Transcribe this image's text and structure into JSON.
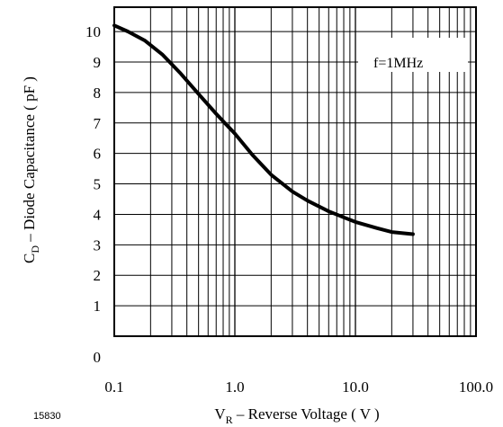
{
  "chart_data": {
    "type": "line",
    "figure_id": "15830",
    "xlabel_main": "V",
    "xlabel_sub": "R",
    "xlabel_rest": " – Reverse Voltage ( V )",
    "ylabel_main": "C",
    "ylabel_sub": "D",
    "ylabel_rest": " – Diode Capacitance ( pF )",
    "annotation": "f=1MHz",
    "xscale": "log",
    "xlim": [
      0.1,
      100
    ],
    "ylim": [
      0,
      10.8
    ],
    "xticks": [
      0.1,
      1,
      10,
      100
    ],
    "xtick_labels": [
      "0.1",
      "1.0",
      "10.0",
      "100.0"
    ],
    "yticks": [
      0,
      1,
      2,
      3,
      4,
      5,
      6,
      7,
      8,
      9,
      10
    ],
    "ytick_labels": [
      "0",
      "1",
      "2",
      "3",
      "4",
      "5",
      "6",
      "7",
      "8",
      "9",
      "10"
    ],
    "grid": true,
    "series": [
      {
        "x": [
          0.1,
          0.13,
          0.18,
          0.25,
          0.35,
          0.5,
          0.7,
          1.0,
          1.4,
          2.0,
          3.0,
          4.0,
          6.0,
          8.0,
          10.0,
          15.0,
          20.0,
          30.0
        ],
        "y": [
          10.2,
          10.0,
          9.7,
          9.25,
          8.65,
          7.95,
          7.3,
          6.65,
          5.95,
          5.3,
          4.75,
          4.45,
          4.1,
          3.9,
          3.75,
          3.55,
          3.42,
          3.35
        ]
      }
    ],
    "line_color": "#000000"
  }
}
